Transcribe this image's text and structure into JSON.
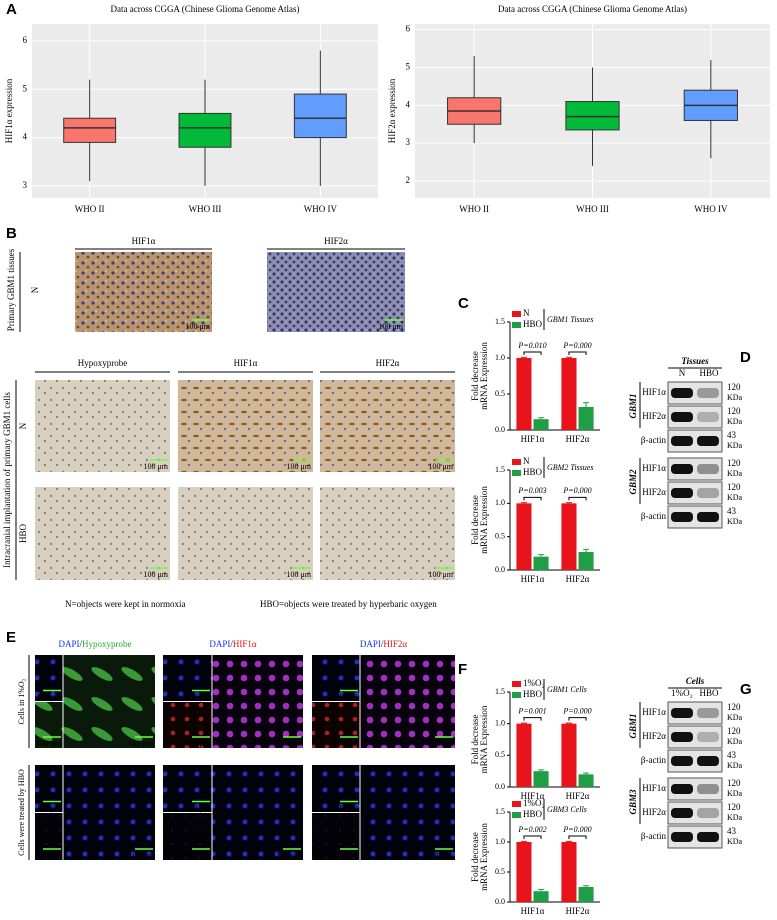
{
  "panel_labels": [
    "A",
    "B",
    "C",
    "D",
    "E",
    "F",
    "G"
  ],
  "chart_data": [
    {
      "type": "box",
      "title": "Data across CGGA (Chinese Glioma Genome Atlas)",
      "y_label": "HIF1α expression",
      "categories": [
        "WHO II",
        "WHO III",
        "WHO IV"
      ],
      "colors": [
        "#f8766d",
        "#00ba38",
        "#619cff"
      ],
      "stats": [
        {
          "min": 3.1,
          "q1": 3.9,
          "median": 4.2,
          "q3": 4.4,
          "max": 5.2
        },
        {
          "min": 3.0,
          "q1": 3.8,
          "median": 4.2,
          "q3": 4.5,
          "max": 5.2
        },
        {
          "min": 3.0,
          "q1": 4.0,
          "median": 4.4,
          "q3": 4.9,
          "max": 5.8
        }
      ],
      "ylim": [
        2.75,
        6.35
      ],
      "yticks": [
        3,
        4,
        5,
        6
      ],
      "grid": true
    },
    {
      "type": "box",
      "title": "Data across CGGA (Chinese Glioma Genome Atlas)",
      "y_label": "HIF2α expression",
      "categories": [
        "WHO II",
        "WHO III",
        "WHO IV"
      ],
      "colors": [
        "#f8766d",
        "#00ba38",
        "#619cff"
      ],
      "stats": [
        {
          "min": 3.0,
          "q1": 3.5,
          "median": 3.85,
          "q3": 4.2,
          "max": 5.3
        },
        {
          "min": 2.4,
          "q1": 3.35,
          "median": 3.7,
          "q3": 4.1,
          "max": 5.0
        },
        {
          "min": 2.6,
          "q1": 3.6,
          "median": 4.0,
          "q3": 4.4,
          "max": 5.2
        }
      ],
      "ylim": [
        1.55,
        6.15
      ],
      "yticks": [
        2,
        3,
        4,
        5,
        6
      ],
      "grid": true
    },
    {
      "type": "bar",
      "annotation": "GBM1 Tissues",
      "y_label": [
        "Fold decrease",
        "mRNA Expression"
      ],
      "categories": [
        "HIF1α",
        "HIF2α"
      ],
      "p_values": [
        "P=0.010",
        "P=0.000"
      ],
      "series": [
        {
          "name": "N",
          "color": "#e8141c",
          "values": [
            1,
            1
          ],
          "errors": [
            0.01,
            0.01
          ]
        },
        {
          "name": "HBO",
          "color": "#1f9e45",
          "values": [
            0.15,
            0.32
          ],
          "errors": [
            0.02,
            0.06
          ]
        }
      ],
      "ylim": [
        0,
        1.5
      ],
      "yticks": [
        {
          "value": 0,
          "label": "0.0"
        },
        0.5,
        {
          "value": 1,
          "label": "1.0"
        },
        1.5
      ]
    },
    {
      "type": "bar",
      "annotation": "GBM2 Tissues",
      "y_label": [
        "Fold decrease",
        "mRNA Expression"
      ],
      "categories": [
        "HIF1α",
        "HIF2α"
      ],
      "p_values": [
        "P=0.003",
        "P=0.000"
      ],
      "series": [
        {
          "name": "N",
          "color": "#e8141c",
          "values": [
            1,
            1
          ],
          "errors": [
            0.01,
            0.01
          ]
        },
        {
          "name": "HBO",
          "color": "#1f9e45",
          "values": [
            0.2,
            0.27
          ],
          "errors": [
            0.03,
            0.04
          ]
        }
      ],
      "ylim": [
        0,
        1.5
      ],
      "yticks": [
        {
          "value": 0,
          "label": "0.0"
        },
        0.5,
        {
          "value": 1,
          "label": "1.0"
        },
        1.5
      ]
    },
    {
      "type": "bar",
      "annotation": "GBM1 Cells",
      "y_label": [
        "Fold decrease",
        "mRNA Expression"
      ],
      "categories": [
        "HIF1α",
        "HIF2α"
      ],
      "p_values": [
        "P=0.001",
        "P=0.000"
      ],
      "series": [
        {
          "name": "1%O₂",
          "color": "#e8141c",
          "values": [
            1,
            1
          ],
          "errors": [
            0.01,
            0.01
          ]
        },
        {
          "name": "HBO",
          "color": "#1f9e45",
          "values": [
            0.25,
            0.2
          ],
          "errors": [
            0.02,
            0.02
          ]
        }
      ],
      "ylim": [
        0,
        1.5
      ],
      "yticks": [
        {
          "value": 0,
          "label": "0.0"
        },
        0.5,
        {
          "value": 1,
          "label": "1.0"
        },
        1.5
      ]
    },
    {
      "type": "bar",
      "annotation": "GBM3 Cells",
      "y_label": [
        "Fold decrease",
        "mRNA Expression"
      ],
      "categories": [
        "HIF1α",
        "HIF2α"
      ],
      "p_values": [
        "P=0.002",
        "P=0.000"
      ],
      "series": [
        {
          "name": "1%O₂",
          "color": "#e8141c",
          "values": [
            1,
            1
          ],
          "errors": [
            0.01,
            0.01
          ]
        },
        {
          "name": "HBO",
          "color": "#1f9e45",
          "values": [
            0.18,
            0.25
          ],
          "errors": [
            0.03,
            0.02
          ]
        }
      ],
      "ylim": [
        0,
        1.5
      ],
      "yticks": [
        {
          "value": 0,
          "label": "0.0"
        },
        0.5,
        {
          "value": 1,
          "label": "1.0"
        },
        1.5
      ]
    }
  ],
  "ihc": {
    "top_headers": [
      "HIF1α",
      "HIF2α"
    ],
    "top_row_label": "Primary GBM1 tissues",
    "top_condition": "N",
    "bottom_headers": [
      "Hypoxyprobe",
      "HIF1α",
      "HIF2α"
    ],
    "bottom_row_label": "Intracranial implantation of primary GBM1 cells",
    "bottom_conditions": [
      "N",
      "HBO"
    ],
    "scale_bar": "100 μm",
    "notes": [
      "N=objects were kept in normoxia",
      "HBO=objects were treated by hyperbaric oxygen"
    ]
  },
  "if": {
    "headers": [
      [
        "DAPI",
        "/",
        "Hypoxyprobe"
      ],
      [
        "DAPI",
        "/",
        "HIF1α"
      ],
      [
        "DAPI",
        "/",
        "HIF2α"
      ]
    ],
    "row_labels": [
      "Cells in 1%O₂",
      "Cells were treated by HBO"
    ],
    "scale_bar": "100 μm"
  },
  "blots": [
    {
      "header": "Tissues",
      "lanes": [
        "N",
        "HBO"
      ],
      "groups": [
        {
          "name": "GBM1",
          "rows": [
            {
              "label": "HIF1α",
              "size": "120",
              "unit": "KDa"
            },
            {
              "label": "HIF2α",
              "size": "120",
              "unit": "KDa"
            }
          ]
        },
        {
          "rows": [
            {
              "label": "β-actin",
              "size": "43",
              "unit": "KDa"
            }
          ]
        },
        {
          "name": "GBM2",
          "rows": [
            {
              "label": "HIF1α",
              "size": "120",
              "unit": "KDa"
            },
            {
              "label": "HIF2α",
              "size": "120",
              "unit": "KDa"
            }
          ]
        },
        {
          "rows": [
            {
              "label": "β-actin",
              "size": "43",
              "unit": "KDa"
            }
          ]
        }
      ]
    },
    {
      "header": "Cells",
      "lanes": [
        "1%O₂",
        "HBO"
      ],
      "groups": [
        {
          "name": "GBM1",
          "rows": [
            {
              "label": "HIF1α",
              "size": "120",
              "unit": "KDa"
            },
            {
              "label": "HIF2α",
              "size": "120",
              "unit": "KDa"
            }
          ]
        },
        {
          "rows": [
            {
              "label": "β-actin",
              "size": "43",
              "unit": "KDa"
            }
          ]
        },
        {
          "name": "GBM3",
          "rows": [
            {
              "label": "HIF1α",
              "size": "120",
              "unit": "KDa"
            },
            {
              "label": "HIF2α",
              "size": "120",
              "unit": "KDa"
            }
          ]
        },
        {
          "rows": [
            {
              "label": "β-actin",
              "size": "43",
              "unit": "KDa"
            }
          ]
        }
      ]
    }
  ]
}
